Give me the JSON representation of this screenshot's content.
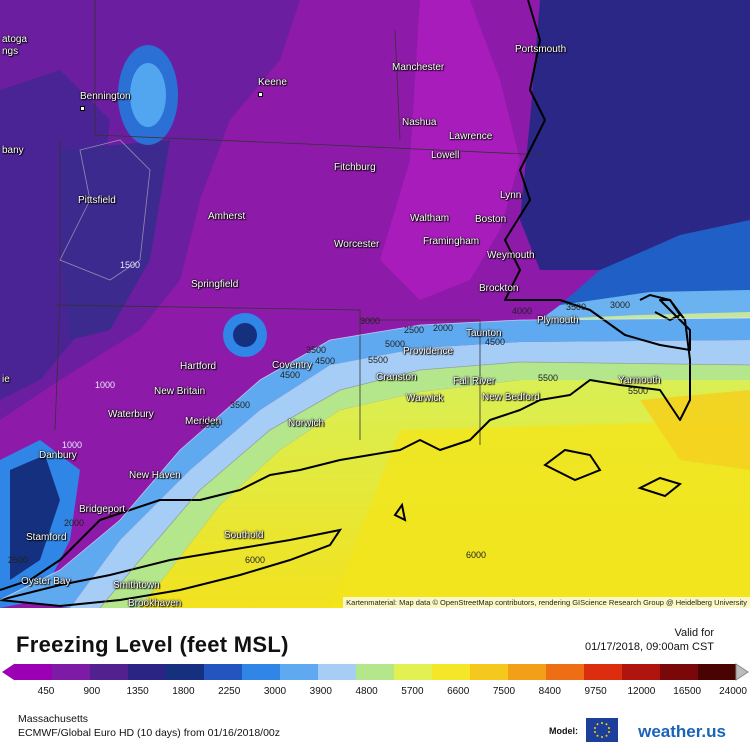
{
  "map": {
    "attribution": "Kartenmaterial: Map data © OpenStreetMap contributors, rendering GIScience Research Group @ Heidelberg University",
    "cities": [
      {
        "name": "atoga",
        "dot": false
      },
      {
        "name": "ngs",
        "dot": false
      },
      {
        "name": "Bennington",
        "dot": true
      },
      {
        "name": "Keene",
        "dot": true
      },
      {
        "name": "Manchester",
        "dot": true
      },
      {
        "name": "Portsmouth",
        "dot": true
      },
      {
        "name": "Nashua",
        "dot": true
      },
      {
        "name": "Lawrence",
        "dot": true
      },
      {
        "name": "bany",
        "dot": false
      },
      {
        "name": "Lowell",
        "dot": true
      },
      {
        "name": "Fitchburg",
        "dot": true
      },
      {
        "name": "Pittsfield",
        "dot": true
      },
      {
        "name": "Lynn",
        "dot": true
      },
      {
        "name": "Amherst",
        "dot": true
      },
      {
        "name": "Waltham",
        "dot": true
      },
      {
        "name": "Boston",
        "dot": true
      },
      {
        "name": "Worcester",
        "dot": true
      },
      {
        "name": "Framingham",
        "dot": true
      },
      {
        "name": "Weymouth",
        "dot": true
      },
      {
        "name": "Springfield",
        "dot": true
      },
      {
        "name": "Brockton",
        "dot": true
      },
      {
        "name": "Plymouth",
        "dot": true
      },
      {
        "name": "Taunton",
        "dot": true
      },
      {
        "name": "Hartford",
        "dot": true
      },
      {
        "name": "Coventry",
        "dot": true
      },
      {
        "name": "Providence",
        "dot": true
      },
      {
        "name": "Cranston",
        "dot": true
      },
      {
        "name": "Fall River",
        "dot": true
      },
      {
        "name": "Yarmouth",
        "dot": true
      },
      {
        "name": "ie",
        "dot": false
      },
      {
        "name": "New Britain",
        "dot": true
      },
      {
        "name": "Warwick",
        "dot": true
      },
      {
        "name": "New Bedford",
        "dot": true
      },
      {
        "name": "Waterbury",
        "dot": true
      },
      {
        "name": "Meriden",
        "dot": true
      },
      {
        "name": "Norwich",
        "dot": true
      },
      {
        "name": "Danbury",
        "dot": true
      },
      {
        "name": "New Haven",
        "dot": true
      },
      {
        "name": "Bridgeport",
        "dot": true
      },
      {
        "name": "Stamford",
        "dot": true
      },
      {
        "name": "Southold",
        "dot": true
      },
      {
        "name": "Oyster Bay",
        "dot": true
      },
      {
        "name": "Smithtown",
        "dot": true
      },
      {
        "name": "Brookhaven",
        "dot": true
      }
    ],
    "isolines": [
      "1500",
      "1000",
      "3000",
      "2500",
      "2000",
      "3500",
      "4500",
      "5000",
      "5500",
      "4000",
      "3500",
      "3000",
      "5500",
      "4500",
      "5500",
      "6000",
      "6000",
      "1000",
      "2000",
      "2500",
      "3000",
      "3500",
      "4500"
    ]
  },
  "legend": {
    "title": "Freezing Level (feet MSL)",
    "valid_label": "Valid for",
    "valid_time": "01/17/2018, 09:00am CST",
    "ticks": [
      "450",
      "900",
      "1350",
      "1800",
      "2250",
      "3000",
      "3900",
      "4800",
      "5700",
      "6600",
      "7500",
      "8400",
      "9750",
      "12000",
      "16500",
      "24000"
    ],
    "colors": [
      "#9c00b4",
      "#7d1aa6",
      "#53208f",
      "#2a2585",
      "#15307f",
      "#2255c0",
      "#2f86e6",
      "#5fa9f0",
      "#a5cdf5",
      "#b4e68c",
      "#e2f052",
      "#f5e628",
      "#f5c81e",
      "#f3a019",
      "#ee6e14",
      "#dc2d0f",
      "#b0140e",
      "#7a0808",
      "#4a0303"
    ]
  },
  "meta": {
    "region": "Massachusetts",
    "model_line": "ECMWF/Global Euro HD (10 days) from 01/16/2018/00z",
    "model_label": "Model:",
    "brand": "weather.us"
  }
}
